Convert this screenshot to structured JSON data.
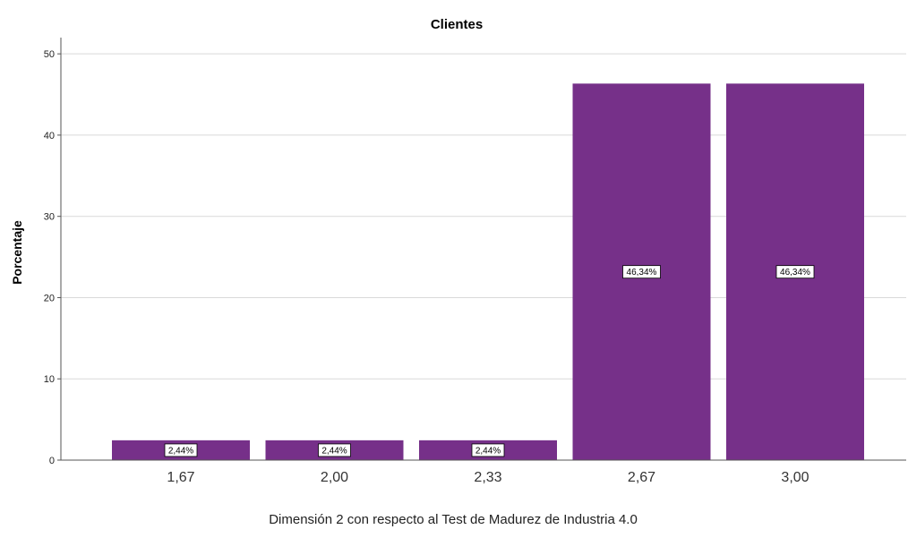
{
  "chart_data": {
    "type": "bar",
    "title": "Clientes",
    "xlabel": "Dimensión 2 con respecto al Test de Madurez de Industria 4.0",
    "ylabel": "Porcentaje",
    "categories": [
      "1,67",
      "2,00",
      "2,33",
      "2,67",
      "3,00"
    ],
    "values": [
      2.44,
      2.44,
      2.44,
      46.34,
      46.34
    ],
    "data_labels": [
      "2,44%",
      "2,44%",
      "2,44%",
      "46,34%",
      "46,34%"
    ],
    "ylim": [
      0,
      52
    ],
    "yticks": [
      "0",
      "10",
      "20",
      "30",
      "40",
      "50"
    ],
    "ytick_values": [
      0,
      10,
      20,
      30,
      40,
      50
    ],
    "grid": true,
    "bar_color": "#763089",
    "grid_color": "#d9d9d9"
  }
}
